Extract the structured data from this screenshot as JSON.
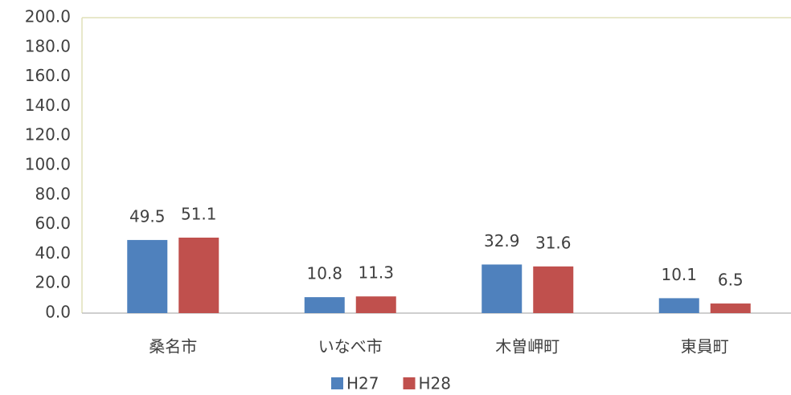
{
  "chart_data": {
    "type": "bar",
    "categories": [
      "桑名市",
      "いなべ市",
      "木曽岬町",
      "東員町"
    ],
    "series": [
      {
        "name": "H27",
        "color": "#4f81bd",
        "values": [
          49.5,
          10.8,
          32.9,
          10.1
        ]
      },
      {
        "name": "H28",
        "color": "#c0504d",
        "values": [
          51.1,
          11.3,
          31.6,
          6.5
        ]
      }
    ],
    "ylim": [
      0,
      200
    ],
    "yticks": [
      {
        "value": 0,
        "label": "0.0"
      },
      {
        "value": 20,
        "label": "20.0"
      },
      {
        "value": 40,
        "label": "40.0"
      },
      {
        "value": 60,
        "label": "60.0"
      },
      {
        "value": 80,
        "label": "80.0"
      },
      {
        "value": 100,
        "label": "100.0"
      },
      {
        "value": 120,
        "label": "120.0"
      },
      {
        "value": 140,
        "label": "140.0"
      },
      {
        "value": 160,
        "label": "160.0"
      },
      {
        "value": 180,
        "label": "180.0"
      },
      {
        "value": 200,
        "label": "200.0"
      }
    ],
    "grid": false,
    "legend": "bottom"
  }
}
